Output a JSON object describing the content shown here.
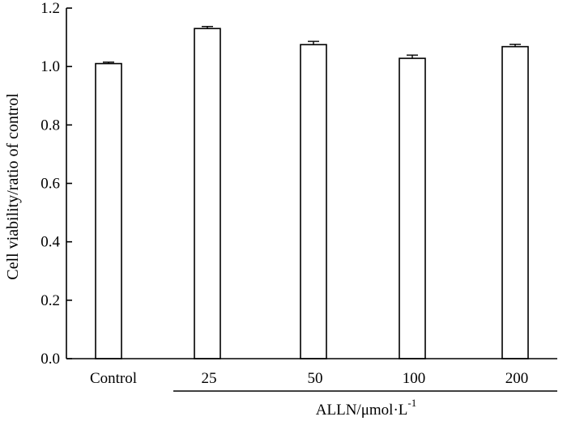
{
  "chart_data": {
    "type": "bar",
    "categories": [
      "Control",
      "25",
      "50",
      "100",
      "200"
    ],
    "values": [
      1.01,
      1.13,
      1.075,
      1.028,
      1.068
    ],
    "errors": [
      0.005,
      0.007,
      0.011,
      0.011,
      0.008
    ],
    "ylabel": "Cell viability/ratio of control",
    "ylim": [
      0,
      1.2
    ],
    "yticks": [
      0.0,
      0.2,
      0.4,
      0.6,
      0.8,
      1.0,
      1.2
    ],
    "ytick_labels": [
      "0.0",
      "0.2",
      "0.4",
      "0.6",
      "0.8",
      "1.0",
      "1.2"
    ],
    "x_group_label": "ALLN/μmol·L",
    "x_group_label_superscript": "-1",
    "x_group_categories": [
      "25",
      "50",
      "100",
      "200"
    ],
    "grid": false,
    "legend": "none",
    "bar_fill": "#ffffff",
    "bar_stroke": "#000000"
  }
}
